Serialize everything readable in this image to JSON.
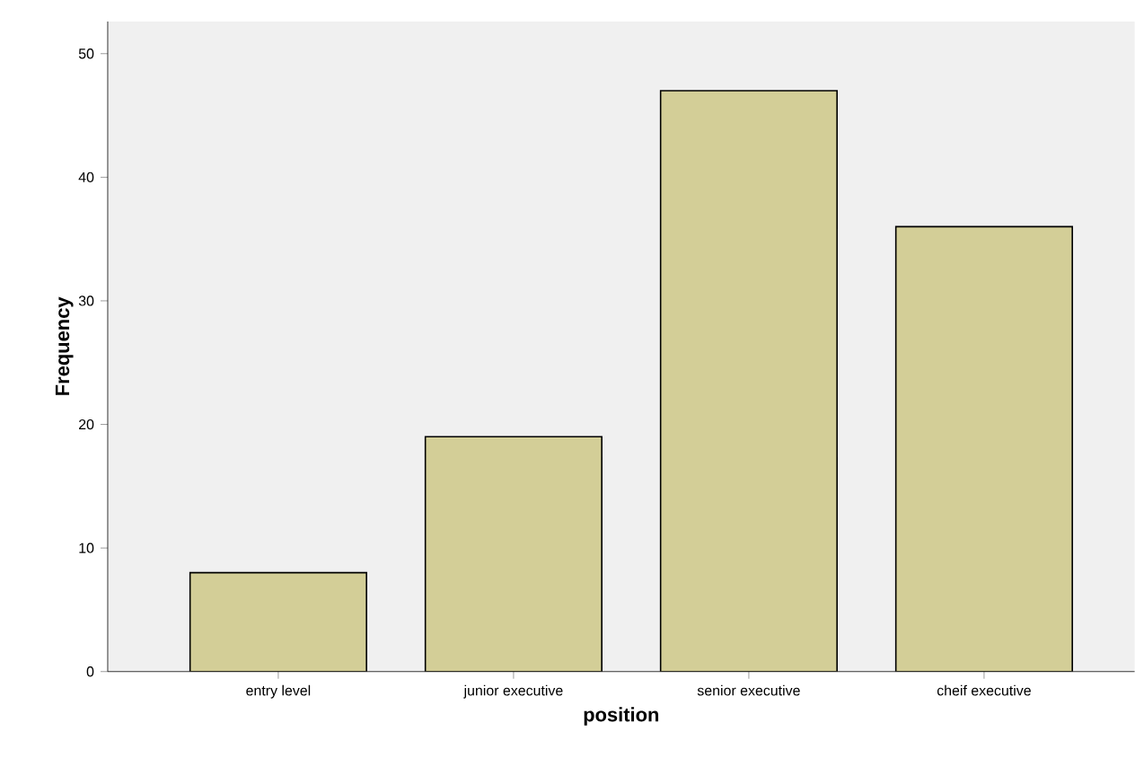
{
  "chart_data": {
    "type": "bar",
    "xlabel": "position",
    "ylabel": "Frequency",
    "categories": [
      "entry level",
      "junior executive",
      "senior executive",
      "cheif executive"
    ],
    "values": [
      8,
      19,
      47,
      36
    ],
    "color": "#d3ce97",
    "ylim": [
      0,
      52.6
    ],
    "yticks": [
      0,
      10,
      20,
      30,
      40,
      50
    ],
    "grid": false
  }
}
